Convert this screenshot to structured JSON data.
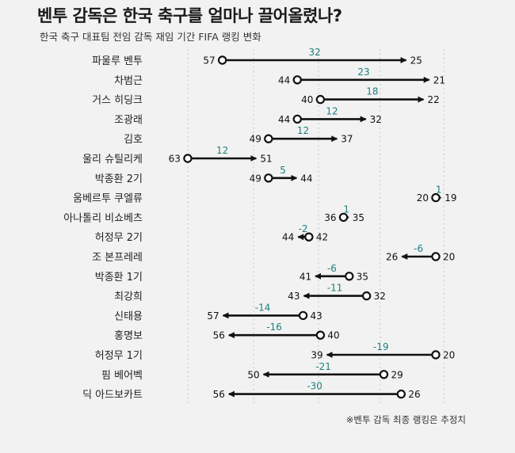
{
  "title": "벤투 감독은 한국 축구를 얼마나 끌어올렸나?",
  "subtitle": "한국 축구 대표팀 전임 감독 재임 기간 FIFA 랭킹 변화",
  "footnote": "※벤투 감독 최종 랭킹은 추정치",
  "colors": {
    "change_label": "#1e7f7f",
    "arrow": "#111111",
    "grid": "#b8b8b8"
  },
  "chart_data": {
    "type": "dumbbell",
    "title": "벤투 감독은 한국 축구를 얼마나 끌어올렸나?",
    "subtitle": "한국 축구 대표팀 전임 감독 재임 기간 FIFA 랭킹 변화",
    "x_axis": "FIFA ranking (reversed, lower rank to the right)",
    "xlim": [
      66,
      17
    ],
    "grid": "vertical dotted",
    "rows": [
      {
        "coach": "파울루 벤투",
        "start": 57,
        "end": 25,
        "change": "32"
      },
      {
        "coach": "차범근",
        "start": 44,
        "end": 21,
        "change": "23"
      },
      {
        "coach": "거스 히딩크",
        "start": 40,
        "end": 22,
        "change": "18"
      },
      {
        "coach": "조광래",
        "start": 44,
        "end": 32,
        "change": "12"
      },
      {
        "coach": "김호",
        "start": 49,
        "end": 37,
        "change": "12"
      },
      {
        "coach": "울리 슈틸리케",
        "start": 63,
        "end": 51,
        "change": "12"
      },
      {
        "coach": "박종환 2기",
        "start": 49,
        "end": 44,
        "change": "5"
      },
      {
        "coach": "움베르투 쿠엘류",
        "start": 20,
        "end": 19,
        "change": "1"
      },
      {
        "coach": "아나톨리 비쇼베츠",
        "start": 36,
        "end": 35,
        "change": "1"
      },
      {
        "coach": "허정무 2기",
        "start": 42,
        "end": 44,
        "change": "-2"
      },
      {
        "coach": "조 본프레레",
        "start": 20,
        "end": 26,
        "change": "-6"
      },
      {
        "coach": "박종환 1기",
        "start": 35,
        "end": 41,
        "change": "-6"
      },
      {
        "coach": "최강희",
        "start": 32,
        "end": 43,
        "change": "-11"
      },
      {
        "coach": "신태용",
        "start": 43,
        "end": 57,
        "change": "-14"
      },
      {
        "coach": "홍명보",
        "start": 40,
        "end": 56,
        "change": "-16"
      },
      {
        "coach": "허정무 1기",
        "start": 20,
        "end": 39,
        "change": "-19"
      },
      {
        "coach": "핌 베어벡",
        "start": 29,
        "end": 50,
        "change": "-21"
      },
      {
        "coach": "딕 아드보카트",
        "start": 26,
        "end": 56,
        "change": "-30"
      }
    ]
  }
}
